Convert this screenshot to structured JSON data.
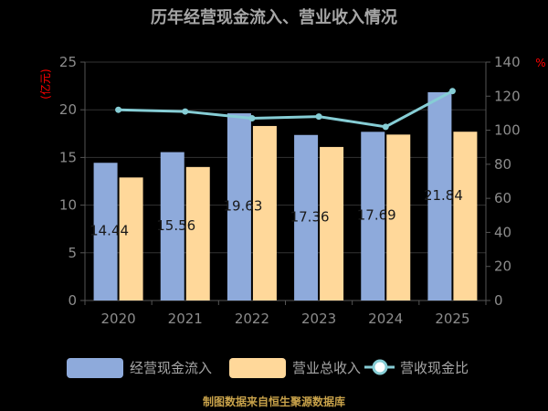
{
  "chart_data": {
    "type": "bar",
    "title": "历年经营现金流入、营业收入情况",
    "categories": [
      "2020",
      "2021",
      "2022",
      "2023",
      "2024",
      "2025"
    ],
    "y_left": {
      "unit": "(亿元)",
      "range": [
        0,
        25
      ],
      "ticks": [
        "0",
        "5",
        "10",
        "15",
        "20",
        "25"
      ]
    },
    "y_right": {
      "unit": "%",
      "range": [
        0,
        140
      ],
      "ticks": [
        "0",
        "20",
        "40",
        "60",
        "80",
        "100",
        "120",
        "140"
      ]
    },
    "series": [
      {
        "name": "经营现金流入",
        "kind": "bar",
        "axis": "left",
        "color": "#8eaadb",
        "values": [
          14.44,
          15.56,
          19.63,
          17.36,
          17.69,
          21.84
        ],
        "labels": [
          "14.44",
          "15.56",
          "19.63",
          "17.36",
          "17.69",
          "21.84"
        ]
      },
      {
        "name": "营业总收入",
        "kind": "bar",
        "axis": "left",
        "color": "#ffd89a",
        "values": [
          12.9,
          14.0,
          18.3,
          16.1,
          17.4,
          17.7
        ]
      },
      {
        "name": "营收现金比",
        "kind": "line",
        "axis": "right",
        "color": "#86cdd5",
        "values": [
          112,
          111,
          107,
          108,
          102,
          123
        ]
      }
    ],
    "grid": true,
    "legend_position": "bottom"
  },
  "source": "制图数据来自恒生聚源数据库"
}
